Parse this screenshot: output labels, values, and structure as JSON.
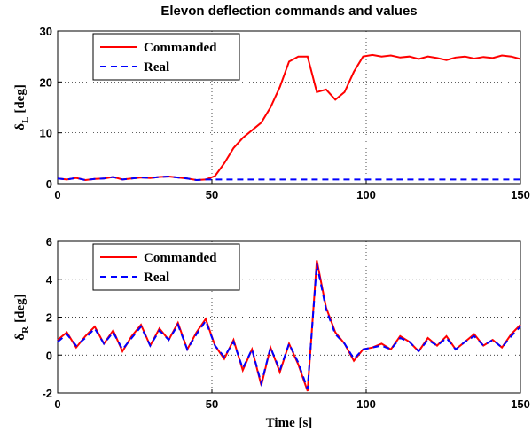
{
  "chart_data": [
    {
      "type": "line",
      "title": "Elevon deflection commands and values",
      "ylabel": {
        "symbol": "δ",
        "subscript": "L",
        "unit": "[deg]"
      },
      "x": [
        0,
        3,
        6,
        9,
        12,
        15,
        18,
        21,
        24,
        27,
        30,
        33,
        36,
        39,
        42,
        45,
        48,
        51,
        54,
        57,
        60,
        63,
        66,
        69,
        72,
        75,
        78,
        81,
        84,
        87,
        90,
        93,
        96,
        99,
        102,
        105,
        108,
        111,
        114,
        117,
        120,
        123,
        126,
        129,
        132,
        135,
        138,
        141,
        144,
        147,
        150
      ],
      "series": [
        {
          "name": "Commanded",
          "color": "#ff0000",
          "linestyle": "solid",
          "values": [
            1,
            0.8,
            1.1,
            0.7,
            0.9,
            1.0,
            1.3,
            0.8,
            1.0,
            1.2,
            1.1,
            1.3,
            1.4,
            1.2,
            1.0,
            0.7,
            0.8,
            1.5,
            4,
            7,
            9,
            10.5,
            12,
            15,
            19,
            24,
            25,
            25,
            18,
            18.5,
            16.5,
            18,
            22,
            25,
            25.3,
            25,
            25.2,
            24.8,
            25,
            24.5,
            25,
            24.7,
            24.3,
            24.8,
            25,
            24.6,
            24.9,
            24.7,
            25.2,
            25,
            24.5
          ]
        },
        {
          "name": "Real",
          "color": "#0000ff",
          "linestyle": "dashed",
          "values": [
            1,
            0.8,
            1.1,
            0.7,
            0.9,
            1.0,
            1.3,
            0.8,
            1.0,
            1.2,
            1.1,
            1.3,
            1.4,
            1.2,
            1.0,
            0.7,
            0.8,
            0.8,
            0.8,
            0.8,
            0.8,
            0.8,
            0.8,
            0.8,
            0.8,
            0.8,
            0.8,
            0.8,
            0.8,
            0.8,
            0.8,
            0.8,
            0.8,
            0.8,
            0.8,
            0.8,
            0.8,
            0.8,
            0.8,
            0.8,
            0.8,
            0.8,
            0.8,
            0.8,
            0.8,
            0.8,
            0.8,
            0.8,
            0.8,
            0.8,
            0.8
          ]
        }
      ],
      "xlim": [
        0,
        150
      ],
      "ylim": [
        0,
        30
      ],
      "xticks": [
        0,
        50,
        100,
        150
      ],
      "yticks": [
        0,
        10,
        20,
        30
      ],
      "grid": true,
      "legend": "upper left"
    },
    {
      "type": "line",
      "xlabel": "Time [s]",
      "ylabel": {
        "symbol": "δ",
        "subscript": "R",
        "unit": "[deg]"
      },
      "x": [
        0,
        3,
        6,
        9,
        12,
        15,
        18,
        21,
        24,
        27,
        30,
        33,
        36,
        39,
        42,
        45,
        48,
        51,
        54,
        57,
        60,
        63,
        66,
        69,
        72,
        75,
        78,
        81,
        84,
        87,
        90,
        93,
        96,
        99,
        102,
        105,
        108,
        111,
        114,
        117,
        120,
        123,
        126,
        129,
        132,
        135,
        138,
        141,
        144,
        147,
        150
      ],
      "series": [
        {
          "name": "Commanded",
          "color": "#ff0000",
          "linestyle": "solid",
          "values": [
            0.8,
            1.2,
            0.4,
            1.0,
            1.5,
            0.6,
            1.3,
            0.2,
            1.0,
            1.6,
            0.5,
            1.4,
            0.8,
            1.7,
            0.3,
            1.2,
            1.9,
            0.5,
            -0.2,
            0.8,
            -0.8,
            0.3,
            -1.6,
            0.4,
            -0.9,
            0.6,
            -0.5,
            -1.9,
            5.0,
            2.5,
            1.2,
            0.6,
            -0.3,
            0.3,
            0.4,
            0.6,
            0.3,
            1.0,
            0.7,
            0.2,
            0.9,
            0.5,
            1.0,
            0.3,
            0.7,
            1.1,
            0.5,
            0.8,
            0.4,
            1.1,
            1.6
          ]
        },
        {
          "name": "Real",
          "color": "#0000ff",
          "linestyle": "dashed",
          "values": [
            0.7,
            1.1,
            0.5,
            0.9,
            1.4,
            0.6,
            1.2,
            0.3,
            0.9,
            1.5,
            0.5,
            1.3,
            0.8,
            1.6,
            0.3,
            1.1,
            1.8,
            0.5,
            -0.1,
            0.7,
            -0.7,
            0.3,
            -1.5,
            0.4,
            -0.8,
            0.6,
            -0.4,
            -1.8,
            4.8,
            2.4,
            1.1,
            0.6,
            -0.2,
            0.3,
            0.4,
            0.5,
            0.3,
            0.9,
            0.7,
            0.2,
            0.8,
            0.5,
            0.9,
            0.3,
            0.7,
            1.0,
            0.5,
            0.8,
            0.4,
            1.0,
            1.5
          ]
        }
      ],
      "xlim": [
        0,
        150
      ],
      "ylim": [
        -2,
        6
      ],
      "xticks": [
        0,
        50,
        100,
        150
      ],
      "yticks": [
        -2,
        0,
        2,
        4,
        6
      ],
      "grid": true,
      "legend": "upper left"
    }
  ]
}
